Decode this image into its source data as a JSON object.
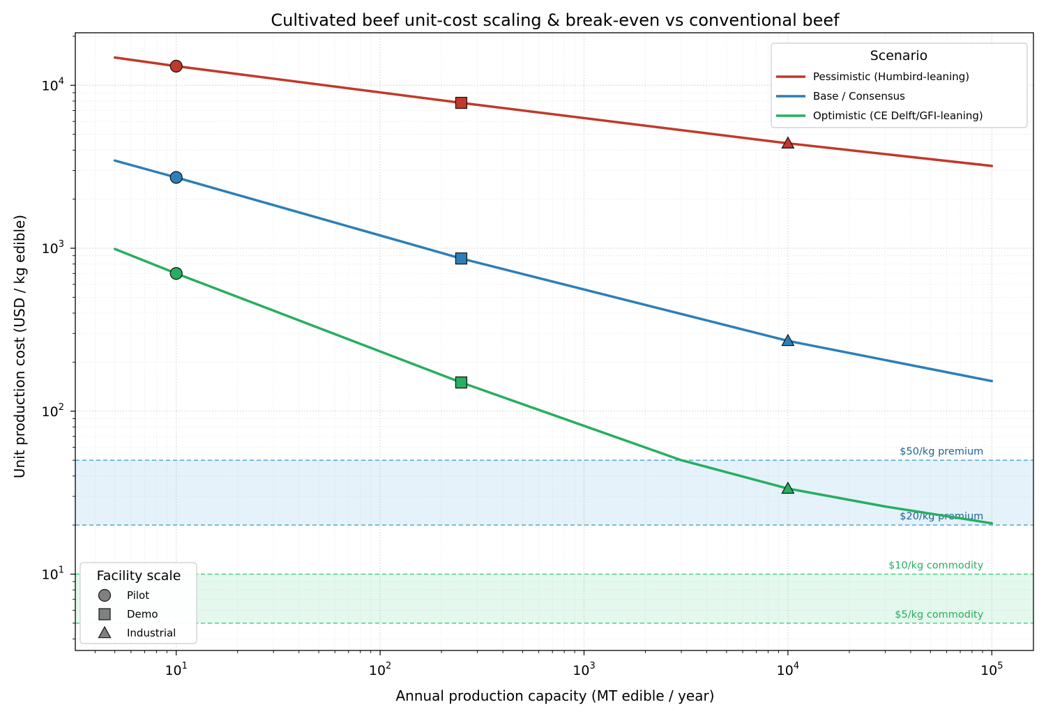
{
  "chart_data": {
    "type": "line",
    "title": "Cultivated beef unit-cost scaling & break-even vs conventional beef",
    "xlabel": "Annual production capacity (MT edible / year)",
    "ylabel": "Unit production cost (USD / kg edible)",
    "x_scale": "log",
    "y_scale": "log",
    "xlim": [
      3.2,
      160000
    ],
    "ylim": [
      3.4,
      21000
    ],
    "x_ticks": [
      {
        "value": 10,
        "base": "10",
        "exp": "1"
      },
      {
        "value": 100,
        "base": "10",
        "exp": "2"
      },
      {
        "value": 1000,
        "base": "10",
        "exp": "3"
      },
      {
        "value": 10000,
        "base": "10",
        "exp": "4"
      },
      {
        "value": 100000,
        "base": "10",
        "exp": "5"
      }
    ],
    "y_ticks": [
      {
        "value": 10,
        "base": "10",
        "exp": "1"
      },
      {
        "value": 100,
        "base": "10",
        "exp": "2"
      },
      {
        "value": 1000,
        "base": "10",
        "exp": "3"
      },
      {
        "value": 10000,
        "base": "10",
        "exp": "4"
      }
    ],
    "grid": true,
    "series": [
      {
        "name": "Pessimistic (Humbird-leaning)",
        "color": "#c0392b",
        "x": [
          5,
          10,
          250,
          10000,
          100000
        ],
        "y": [
          14800,
          13100,
          7800,
          4400,
          3200
        ],
        "markers": [
          {
            "x": 10,
            "y": 13100,
            "shape": "circle"
          },
          {
            "x": 250,
            "y": 7800,
            "shape": "square"
          },
          {
            "x": 10000,
            "y": 4400,
            "shape": "triangle"
          }
        ]
      },
      {
        "name": "Base / Consensus",
        "color": "#2c7fb8",
        "x": [
          5,
          10,
          250,
          10000,
          100000
        ],
        "y": [
          3450,
          2720,
          865,
          270,
          153
        ],
        "markers": [
          {
            "x": 10,
            "y": 2720,
            "shape": "circle"
          },
          {
            "x": 250,
            "y": 865,
            "shape": "square"
          },
          {
            "x": 10000,
            "y": 270,
            "shape": "triangle"
          }
        ]
      },
      {
        "name": "Optimistic (CE Delft/GFI-leaning)",
        "color": "#27ae60",
        "x": [
          5,
          10,
          250,
          3000,
          10000,
          30000,
          100000
        ],
        "y": [
          990,
          700,
          150,
          50,
          33.5,
          26,
          20.5
        ],
        "markers": [
          {
            "x": 10,
            "y": 700,
            "shape": "circle"
          },
          {
            "x": 250,
            "y": 150,
            "shape": "square"
          },
          {
            "x": 10000,
            "y": 33.5,
            "shape": "triangle"
          }
        ]
      }
    ],
    "bands": [
      {
        "y0": 20,
        "y1": 50,
        "color": "#3498db",
        "label_top": "$50/kg premium",
        "label_bottom": "$20/kg premium",
        "label_color": "#1f6391"
      },
      {
        "y0": 5,
        "y1": 10,
        "color": "#2ecc71",
        "label_top": "$10/kg commodity",
        "label_bottom": "$5/kg commodity",
        "label_color": "#27ae60"
      }
    ],
    "legend_scenario": {
      "title": "Scenario",
      "placement": "top-right",
      "items": [
        "Pessimistic (Humbird-leaning)",
        "Base / Consensus",
        "Optimistic (CE Delft/GFI-leaning)"
      ]
    },
    "legend_scale": {
      "title": "Facility scale",
      "placement": "bottom-left",
      "items": [
        {
          "label": "Pilot",
          "shape": "circle"
        },
        {
          "label": "Demo",
          "shape": "square"
        },
        {
          "label": "Industrial",
          "shape": "triangle"
        }
      ]
    }
  }
}
